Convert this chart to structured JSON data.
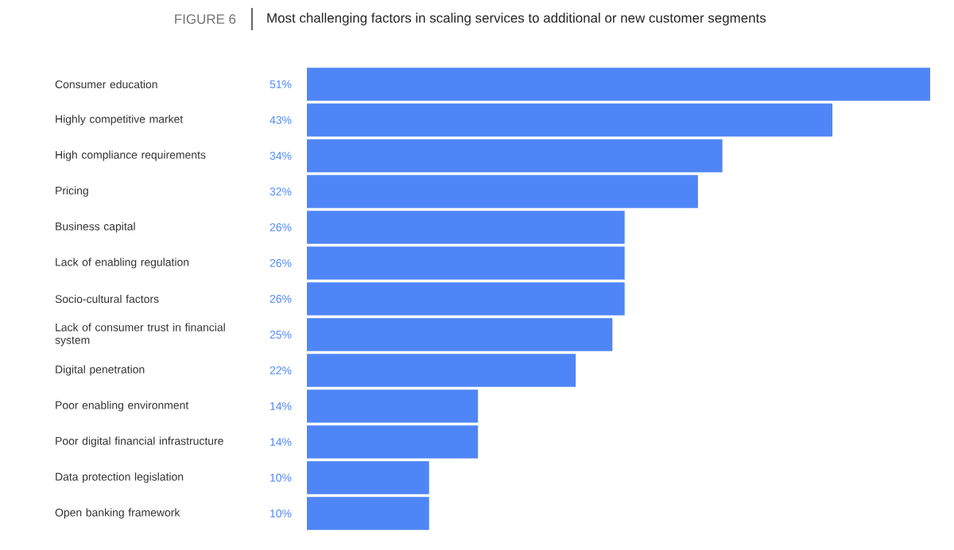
{
  "chart_data": {
    "type": "bar",
    "orientation": "horizontal",
    "title": "Most challenging factors in scaling services to additional or new customer segments",
    "annotations": [
      "FIGURE 6"
    ],
    "categories": [
      "Consumer education",
      "Highly competitive market",
      "High compliance requirements",
      "Pricing",
      "Business capital",
      "Lack of enabling regulation",
      "Socio-cultural factors",
      "Lack of consumer trust in financial system",
      "Digital penetration",
      "Poor enabling environment",
      "Poor digital financial infrastructure",
      "Data protection legislation",
      "Open banking framework"
    ],
    "values": [
      51,
      43,
      34,
      32,
      26,
      26,
      26,
      25,
      22,
      14,
      14,
      10,
      10
    ],
    "value_labels": [
      "51%",
      "43%",
      "34%",
      "32%",
      "26%",
      "26%",
      "26%",
      "25%",
      "22%",
      "14%",
      "14%",
      "10%",
      "10%"
    ],
    "color": "#4f86f7"
  }
}
